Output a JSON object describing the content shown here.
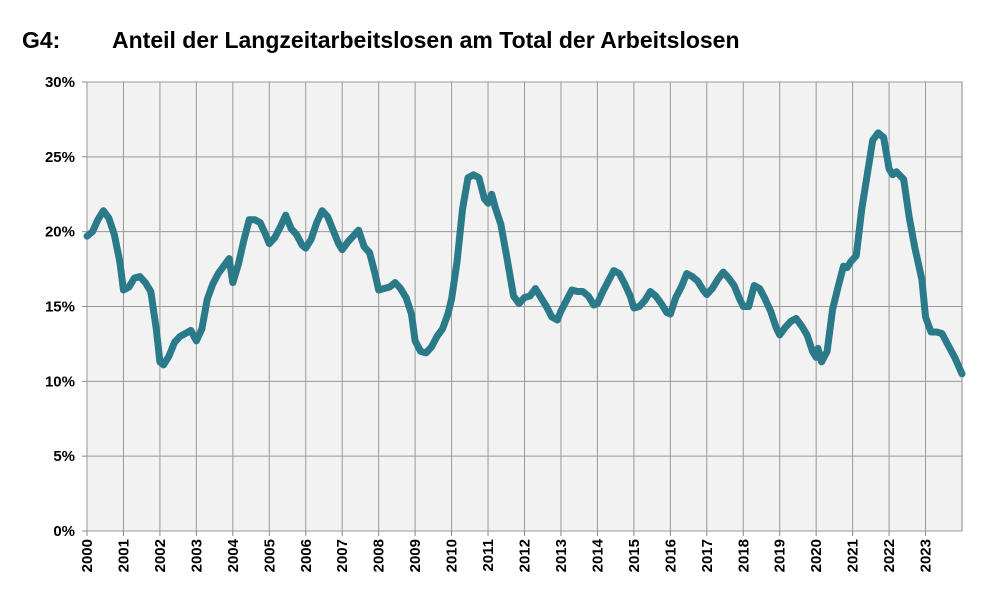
{
  "chart_data": {
    "type": "line",
    "label": "G4:",
    "title": "Anteil der Langzeitarbeitslosen am Total der Arbeitslosen",
    "xlim": [
      2000,
      2024
    ],
    "xticks": [
      2000,
      2001,
      2002,
      2003,
      2004,
      2005,
      2006,
      2007,
      2008,
      2009,
      2010,
      2011,
      2012,
      2013,
      2014,
      2015,
      2016,
      2017,
      2018,
      2019,
      2020,
      2021,
      2022,
      2023
    ],
    "ylim": [
      0,
      30
    ],
    "yticks": [
      {
        "value": 0,
        "label": "0%"
      },
      {
        "value": 5,
        "label": "5%"
      },
      {
        "value": 10,
        "label": "10%"
      },
      {
        "value": 15,
        "label": "15%"
      },
      {
        "value": 20,
        "label": "20%"
      },
      {
        "value": 25,
        "label": "25%"
      },
      {
        "value": 30,
        "label": "30%"
      }
    ],
    "grid": true,
    "x": [
      2000.0,
      2000.15,
      2000.3,
      2000.45,
      2000.6,
      2000.75,
      2000.9,
      2001.0,
      2001.15,
      2001.3,
      2001.45,
      2001.6,
      2001.75,
      2001.9,
      2002.0,
      2002.1,
      2002.25,
      2002.4,
      2002.55,
      2002.7,
      2002.85,
      2003.0,
      2003.15,
      2003.3,
      2003.45,
      2003.6,
      2003.75,
      2003.9,
      2004.0,
      2004.15,
      2004.3,
      2004.45,
      2004.6,
      2004.75,
      2004.9,
      2005.0,
      2005.15,
      2005.3,
      2005.45,
      2005.6,
      2005.75,
      2005.9,
      2006.0,
      2006.15,
      2006.3,
      2006.45,
      2006.6,
      2006.75,
      2006.9,
      2007.0,
      2007.15,
      2007.3,
      2007.45,
      2007.6,
      2007.75,
      2007.9,
      2008.0,
      2008.15,
      2008.3,
      2008.45,
      2008.6,
      2008.75,
      2008.9,
      2009.0,
      2009.15,
      2009.3,
      2009.45,
      2009.6,
      2009.75,
      2009.9,
      2010.0,
      2010.15,
      2010.3,
      2010.45,
      2010.6,
      2010.75,
      2010.9,
      2011.0,
      2011.1,
      2011.2,
      2011.35,
      2011.5,
      2011.7,
      2011.85,
      2012.0,
      2012.15,
      2012.3,
      2012.45,
      2012.6,
      2012.75,
      2012.9,
      2013.0,
      2013.15,
      2013.3,
      2013.45,
      2013.6,
      2013.75,
      2013.9,
      2014.0,
      2014.15,
      2014.3,
      2014.45,
      2014.6,
      2014.75,
      2014.9,
      2015.0,
      2015.15,
      2015.3,
      2015.45,
      2015.6,
      2015.75,
      2015.9,
      2016.0,
      2016.15,
      2016.3,
      2016.45,
      2016.6,
      2016.75,
      2016.9,
      2017.0,
      2017.15,
      2017.3,
      2017.45,
      2017.6,
      2017.75,
      2017.9,
      2018.0,
      2018.15,
      2018.3,
      2018.45,
      2018.6,
      2018.75,
      2018.9,
      2019.0,
      2019.15,
      2019.3,
      2019.45,
      2019.6,
      2019.75,
      2019.9,
      2020.0,
      2020.05,
      2020.15,
      2020.3,
      2020.45,
      2020.6,
      2020.75,
      2020.85,
      2020.95,
      2021.1,
      2021.25,
      2021.4,
      2021.55,
      2021.7,
      2021.85,
      2022.0,
      2022.1,
      2022.2,
      2022.4,
      2022.55,
      2022.7,
      2022.9,
      2023.0,
      2023.15,
      2023.3,
      2023.45,
      2023.6,
      2023.8,
      2024.0
    ],
    "series": [
      {
        "color": "#2b7a8a",
        "values": [
          19.7,
          20.0,
          20.8,
          21.4,
          20.9,
          19.8,
          18.0,
          16.1,
          16.3,
          16.9,
          17.0,
          16.6,
          16.0,
          13.5,
          11.3,
          11.1,
          11.7,
          12.6,
          13.0,
          13.2,
          13.4,
          12.7,
          13.5,
          15.5,
          16.5,
          17.2,
          17.7,
          18.2,
          16.6,
          17.8,
          19.4,
          20.8,
          20.8,
          20.6,
          19.8,
          19.2,
          19.6,
          20.3,
          21.1,
          20.2,
          19.8,
          19.1,
          18.9,
          19.5,
          20.6,
          21.4,
          21.0,
          20.1,
          19.2,
          18.8,
          19.3,
          19.7,
          20.1,
          19.0,
          18.6,
          17.2,
          16.1,
          16.2,
          16.3,
          16.6,
          16.2,
          15.6,
          14.5,
          12.7,
          12.0,
          11.9,
          12.3,
          13.0,
          13.5,
          14.5,
          15.5,
          18.0,
          21.5,
          23.6,
          23.8,
          23.6,
          22.2,
          21.9,
          22.5,
          21.6,
          20.5,
          18.5,
          15.7,
          15.2,
          15.6,
          15.7,
          16.2,
          15.6,
          15.0,
          14.3,
          14.1,
          14.7,
          15.4,
          16.1,
          16.0,
          16.0,
          15.7,
          15.1,
          15.2,
          16.0,
          16.7,
          17.4,
          17.2,
          16.5,
          15.7,
          14.9,
          15.0,
          15.4,
          16.0,
          15.7,
          15.2,
          14.6,
          14.5,
          15.6,
          16.3,
          17.2,
          17.0,
          16.7,
          16.1,
          15.8,
          16.2,
          16.8,
          17.3,
          16.9,
          16.4,
          15.5,
          15.0,
          15.0,
          16.4,
          16.2,
          15.5,
          14.7,
          13.6,
          13.1,
          13.6,
          14.0,
          14.2,
          13.7,
          13.1,
          12.0,
          11.6,
          12.2,
          11.3,
          12.0,
          14.8,
          16.3,
          17.7,
          17.6,
          18.0,
          18.4,
          21.5,
          23.8,
          26.1,
          26.6,
          26.3,
          24.2,
          23.8,
          24.0,
          23.5,
          21.0,
          19.0,
          16.8,
          14.3,
          13.3,
          13.3,
          13.2,
          12.5,
          11.6,
          10.5
        ]
      }
    ]
  }
}
